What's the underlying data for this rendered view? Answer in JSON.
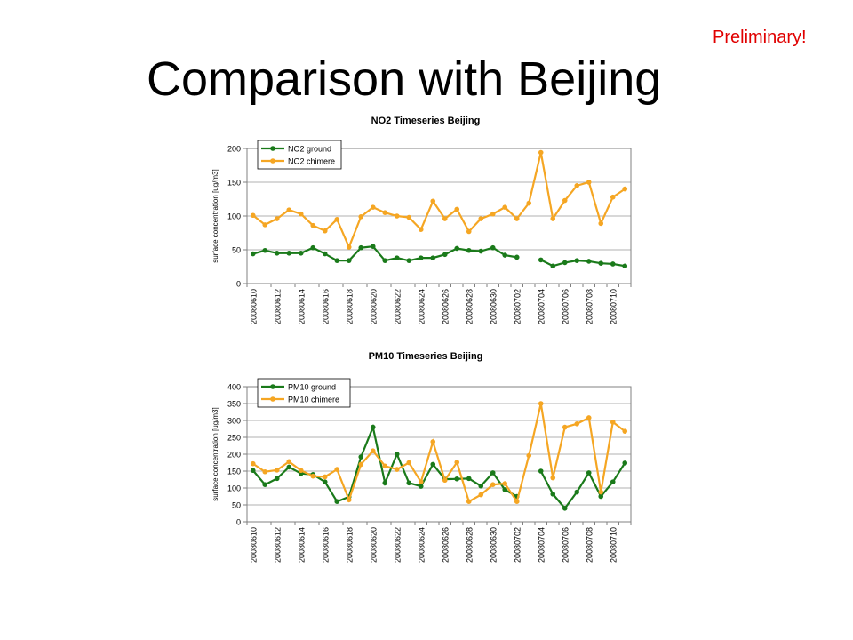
{
  "slide": {
    "title": "Comparison with Beijing",
    "note": "Preliminary!"
  },
  "colors": {
    "ground": "#1a7a1a",
    "chimere": "#f5a623",
    "grid": "#999999",
    "axis": "#808080"
  },
  "chart_data": [
    {
      "type": "line",
      "title": "NO2 Timeseries Beijing",
      "ylabel": "surface concentration [ug/m3]",
      "ylim": [
        0,
        200
      ],
      "yticks": [
        0,
        50,
        100,
        150,
        200
      ],
      "grid": true,
      "legend": "top-left",
      "categories": [
        "20080610",
        "20080611",
        "20080612",
        "20080613",
        "20080614",
        "20080615",
        "20080616",
        "20080617",
        "20080618",
        "20080619",
        "20080620",
        "20080621",
        "20080622",
        "20080623",
        "20080624",
        "20080625",
        "20080626",
        "20080627",
        "20080628",
        "20080629",
        "20080630",
        "20080701",
        "20080702",
        "20080703",
        "20080704",
        "20080705",
        "20080706",
        "20080707",
        "20080708",
        "20080709",
        "20080710",
        "20080711"
      ],
      "xtick_labels": [
        "20080610",
        "20080612",
        "20080614",
        "20080616",
        "20080618",
        "20080620",
        "20080622",
        "20080624",
        "20080626",
        "20080628",
        "20080630",
        "20080702",
        "20080704",
        "20080706",
        "20080708",
        "20080710"
      ],
      "series": [
        {
          "name": "NO2 ground",
          "color": "#1a7a1a",
          "values": [
            44,
            49,
            45,
            45,
            45,
            53,
            44,
            34,
            34,
            53,
            55,
            34,
            38,
            34,
            38,
            38,
            43,
            52,
            49,
            48,
            53,
            42,
            39,
            null,
            35,
            26,
            31,
            34,
            33,
            30,
            29,
            26
          ]
        },
        {
          "name": "NO2 chimere",
          "color": "#f5a623",
          "values": [
            101,
            87,
            96,
            109,
            103,
            86,
            78,
            95,
            54,
            99,
            113,
            105,
            100,
            98,
            80,
            122,
            96,
            110,
            77,
            96,
            103,
            113,
            96,
            119,
            194,
            96,
            123,
            145,
            150,
            89,
            128,
            140
          ]
        }
      ]
    },
    {
      "type": "line",
      "title": "PM10 Timeseries Beijing",
      "ylabel": "surface concentration [ug/m3]",
      "ylim": [
        0,
        400
      ],
      "yticks": [
        0,
        50,
        100,
        150,
        200,
        250,
        300,
        350,
        400
      ],
      "grid": true,
      "legend": "top-left",
      "categories": [
        "20080610",
        "20080611",
        "20080612",
        "20080613",
        "20080614",
        "20080615",
        "20080616",
        "20080617",
        "20080618",
        "20080619",
        "20080620",
        "20080621",
        "20080622",
        "20080623",
        "20080624",
        "20080625",
        "20080626",
        "20080627",
        "20080628",
        "20080629",
        "20080630",
        "20080701",
        "20080702",
        "20080703",
        "20080704",
        "20080705",
        "20080706",
        "20080707",
        "20080708",
        "20080709",
        "20080710",
        "20080711"
      ],
      "xtick_labels": [
        "20080610",
        "20080612",
        "20080614",
        "20080616",
        "20080618",
        "20080620",
        "20080622",
        "20080624",
        "20080626",
        "20080628",
        "20080630",
        "20080702",
        "20080704",
        "20080706",
        "20080708",
        "20080710"
      ],
      "series": [
        {
          "name": "PM10 ground",
          "color": "#1a7a1a",
          "values": [
            152,
            110,
            128,
            162,
            143,
            140,
            118,
            60,
            74,
            192,
            280,
            115,
            200,
            115,
            105,
            170,
            126,
            127,
            128,
            106,
            145,
            95,
            75,
            null,
            150,
            82,
            40,
            88,
            145,
            75,
            118,
            174
          ]
        },
        {
          "name": "PM10 chimere",
          "color": "#f5a623",
          "values": [
            172,
            148,
            153,
            178,
            152,
            135,
            133,
            155,
            65,
            170,
            210,
            165,
            155,
            175,
            118,
            237,
            123,
            176,
            60,
            80,
            110,
            113,
            60,
            196,
            350,
            130,
            280,
            290,
            308,
            88,
            295,
            268
          ]
        }
      ]
    }
  ]
}
